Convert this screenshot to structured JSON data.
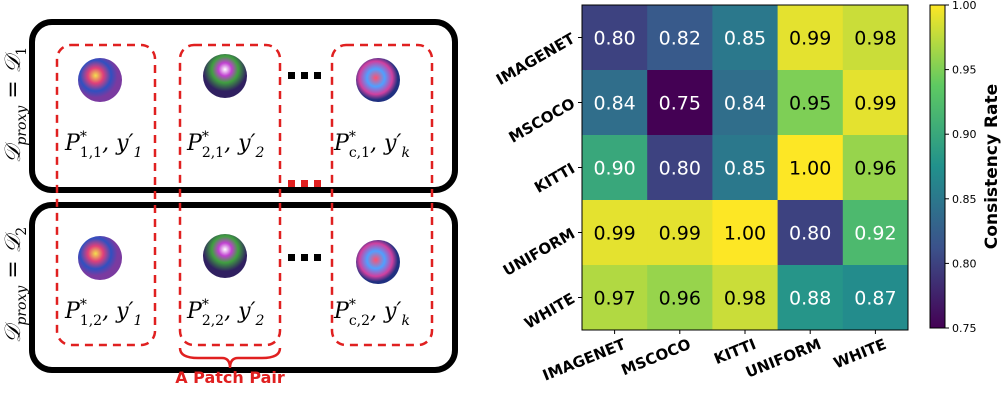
{
  "diagram": {
    "rows": [
      {
        "label": {
          "base": "𝒟",
          "sub": "proxy",
          "rest": " = 𝒟",
          "index": "1"
        },
        "pairs": [
          {
            "p": "P",
            "sup": "*",
            "sub": "1,1",
            "y": ", y′",
            "ysub": "1"
          },
          {
            "p": "P",
            "sup": "*",
            "sub": "2,1",
            "y": ", y′",
            "ysub": "2"
          },
          {
            "p": "P",
            "sup": "*",
            "sub": "c,1",
            "y": ", y′",
            "ysub": "k"
          }
        ]
      },
      {
        "label": {
          "base": "𝒟",
          "sub": "proxy",
          "rest": " = 𝒟",
          "index": "2"
        },
        "pairs": [
          {
            "p": "P",
            "sup": "*",
            "sub": "1,2",
            "y": ", y′",
            "ysub": "1"
          },
          {
            "p": "P",
            "sup": "*",
            "sub": "2,2",
            "y": ", y′",
            "ysub": "2"
          },
          {
            "p": "P",
            "sup": "*",
            "sub": "c,2",
            "y": ", y′",
            "ysub": "k"
          }
        ]
      }
    ],
    "caption": "A Patch Pair"
  },
  "chart_data": {
    "type": "heatmap",
    "colormap": "viridis",
    "x_categories": [
      "IMAGENET",
      "MSCOCO",
      "KITTI",
      "UNIFORM",
      "WHITE"
    ],
    "y_categories": [
      "IMAGENET",
      "MSCOCO",
      "KITTI",
      "UNIFORM",
      "WHITE"
    ],
    "values": [
      [
        0.8,
        0.82,
        0.85,
        0.99,
        0.98
      ],
      [
        0.84,
        0.75,
        0.84,
        0.95,
        0.99
      ],
      [
        0.9,
        0.8,
        0.85,
        1.0,
        0.96
      ],
      [
        0.99,
        0.99,
        1.0,
        0.8,
        0.92
      ],
      [
        0.97,
        0.96,
        0.98,
        0.88,
        0.87
      ]
    ],
    "value_labels": [
      [
        "0.80",
        "0.82",
        "0.85",
        "0.99",
        "0.98"
      ],
      [
        "0.84",
        "0.75",
        "0.84",
        "0.95",
        "0.99"
      ],
      [
        "0.90",
        "0.80",
        "0.85",
        "1.00",
        "0.96"
      ],
      [
        "0.99",
        "0.99",
        "1.00",
        "0.80",
        "0.92"
      ],
      [
        "0.97",
        "0.96",
        "0.98",
        "0.88",
        "0.87"
      ]
    ],
    "clim": [
      0.75,
      1.0
    ],
    "colorbar_label": "Consistency Rate",
    "colorbar_ticks": [
      0.75,
      {
        "value": 0.8,
        "label": "0.80"
      },
      0.85,
      {
        "value": 0.9,
        "label": "0.90"
      },
      0.95,
      {
        "value": 1.0,
        "label": "1.00"
      }
    ]
  }
}
